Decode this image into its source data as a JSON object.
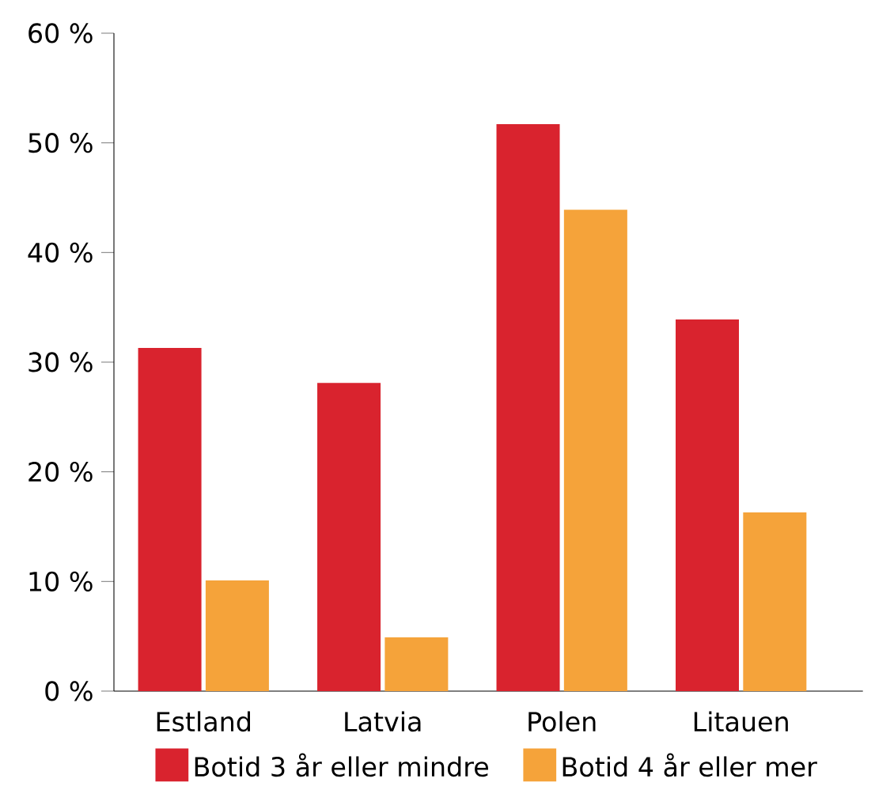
{
  "chart_data": {
    "type": "bar",
    "categories": [
      "Estland",
      "Latvia",
      "Polen",
      "Litauen"
    ],
    "series": [
      {
        "name": "Botid 3 år eller mindre",
        "color": "#d9232e",
        "values": [
          31.3,
          28.1,
          51.7,
          33.9
        ]
      },
      {
        "name": "Botid 4 år eller mer",
        "color": "#f5a33a",
        "values": [
          10.1,
          4.9,
          43.9,
          16.3
        ]
      }
    ],
    "ylim": [
      0,
      60
    ],
    "yticks": [
      {
        "value": 0,
        "label": "0 %"
      },
      {
        "value": 10,
        "label": "10 %"
      },
      {
        "value": 20,
        "label": "20 %"
      },
      {
        "value": 30,
        "label": "30 %"
      },
      {
        "value": 40,
        "label": "40 %"
      },
      {
        "value": 50,
        "label": "50 %"
      },
      {
        "value": 60,
        "label": "60 %"
      }
    ],
    "grid": false,
    "legend": "bottom"
  }
}
